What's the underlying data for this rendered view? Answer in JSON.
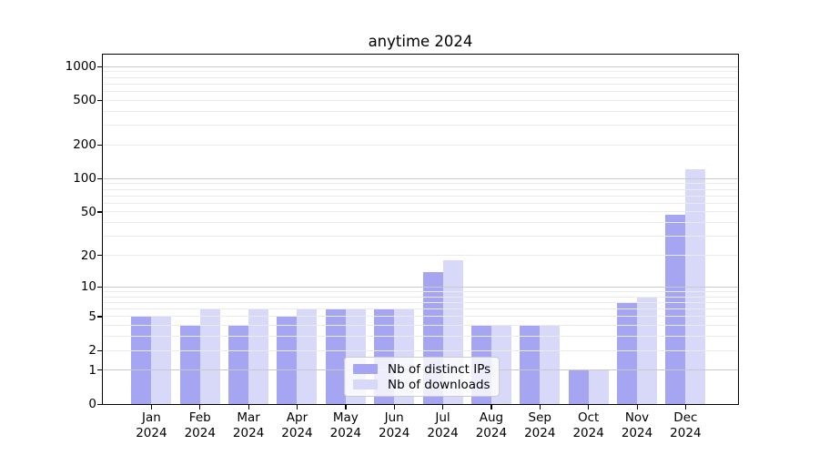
{
  "title": "anytime 2024",
  "chart_data": {
    "type": "bar",
    "title": "anytime 2024",
    "categories": [
      "Jan",
      "Feb",
      "Mar",
      "Apr",
      "May",
      "Jun",
      "Jul",
      "Aug",
      "Sep",
      "Oct",
      "Nov",
      "Dec"
    ],
    "year_label": "2024",
    "series": [
      {
        "name": "Nb of distinct IPs",
        "color": "#a5a5f1",
        "values": [
          5,
          4,
          4,
          5,
          6,
          6,
          14,
          4,
          4,
          1,
          7,
          47
        ]
      },
      {
        "name": "Nb of downloads",
        "color": "#d8d8f8",
        "values": [
          5,
          6,
          6,
          6,
          6,
          6,
          18,
          4,
          4,
          1,
          8,
          121
        ]
      }
    ],
    "xlabel": "",
    "ylabel": "",
    "yscale": "log1p",
    "ylim": [
      0,
      1278
    ],
    "y_ticks": [
      0,
      1,
      2,
      5,
      10,
      20,
      50,
      100,
      200,
      500,
      1000
    ],
    "major_gridlines": [
      1,
      10,
      100,
      1000
    ],
    "minor_gridlines": [
      2,
      3,
      4,
      5,
      6,
      7,
      8,
      9,
      20,
      30,
      40,
      50,
      60,
      70,
      80,
      90,
      200,
      300,
      400,
      500,
      600,
      700,
      800,
      900
    ],
    "grid": true,
    "legend_position": "lower center"
  },
  "colors": {
    "bar_ips": "#a5a5f1",
    "bar_downloads": "#d8d8f8",
    "grid_minor": "#ebebeb",
    "grid_major": "#c9c9c9",
    "axis": "#000000",
    "legend_border": "#cccccc",
    "legend_bg": "rgba(255,255,255,0.8)"
  }
}
